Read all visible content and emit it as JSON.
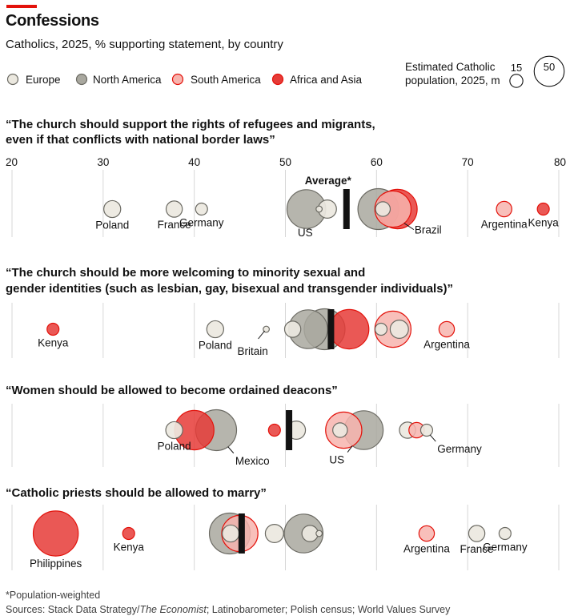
{
  "header": {
    "title": "Confessions",
    "subtitle": "Catholics, 2025, % supporting statement, by country"
  },
  "legend": {
    "regions": [
      {
        "label": "Europe",
        "fill": "#ebe8df",
        "stroke": "#6b6a63"
      },
      {
        "label": "North America",
        "fill": "#a9a89f",
        "stroke": "#6b6a63"
      },
      {
        "label": "South America",
        "fill": "#f7b4ae",
        "stroke": "#e3120b"
      },
      {
        "label": "Africa and Asia",
        "fill": "#e63b37",
        "stroke": "#e3120b"
      }
    ],
    "size_title_line1": "Estimated Catholic",
    "size_title_line2": "population, 2025, m",
    "size_values": [
      15,
      50
    ]
  },
  "footnotes": {
    "note": "*Population-weighted",
    "sources_prefix": "Sources: Stack Data Strategy/",
    "sources_italic": "The Economist",
    "sources_suffix": "; Latinobarometer; Polish census; World Values Survey"
  },
  "chart_data": {
    "type": "scatter",
    "x_axis": {
      "range": [
        20,
        80
      ],
      "ticks": [
        20,
        30,
        40,
        50,
        60,
        70,
        80
      ]
    },
    "average_label": "Average*",
    "panels": [
      {
        "title_lines": [
          "“The church should support the rights of refugees and migrants,",
          "even if that conflicts with national border laws”"
        ],
        "average": 56.7,
        "points": [
          {
            "region": "North America",
            "value": 52.3,
            "population": 63,
            "label": "US"
          },
          {
            "region": "Europe",
            "value": 54.6,
            "population": 14
          },
          {
            "region": "Europe",
            "value": 53.7,
            "population": 1
          },
          {
            "region": "North America",
            "value": 60.2,
            "population": 70
          },
          {
            "region": "Africa and Asia",
            "value": 62.3,
            "population": 65
          },
          {
            "region": "South America",
            "value": 61.8,
            "population": 55,
            "label": "Brazil"
          },
          {
            "region": "Europe",
            "value": 60.7,
            "population": 9
          },
          {
            "region": "Europe",
            "value": 31.0,
            "population": 12,
            "label": "Poland"
          },
          {
            "region": "Europe",
            "value": 37.8,
            "population": 11,
            "label": "France"
          },
          {
            "region": "Europe",
            "value": 40.8,
            "population": 6,
            "label": "Germany"
          },
          {
            "region": "South America",
            "value": 74.0,
            "population": 10,
            "label": "Argentina"
          },
          {
            "region": "Africa and Asia",
            "value": 78.3,
            "population": 6,
            "label": "Kenya"
          }
        ]
      },
      {
        "title_lines": [
          "“The church should be more welcoming to minority sexual and",
          "gender identities (such as lesbian, gay, bisexual and transgender individuals)”"
        ],
        "average": 55.0,
        "points": [
          {
            "region": "Africa and Asia",
            "value": 24.5,
            "population": 6,
            "label": "Kenya"
          },
          {
            "region": "Europe",
            "value": 42.3,
            "population": 12,
            "label": "Poland"
          },
          {
            "region": "Europe",
            "value": 47.9,
            "population": 1,
            "label": "Britain"
          },
          {
            "region": "North America",
            "value": 52.5,
            "population": 63
          },
          {
            "region": "North America",
            "value": 54.3,
            "population": 70
          },
          {
            "region": "Europe",
            "value": 50.8,
            "population": 11
          },
          {
            "region": "Africa and Asia",
            "value": 57.0,
            "population": 65
          },
          {
            "region": "Europe",
            "value": 60.5,
            "population": 6
          },
          {
            "region": "South America",
            "value": 61.8,
            "population": 55
          },
          {
            "region": "Europe",
            "value": 62.5,
            "population": 14
          },
          {
            "region": "South America",
            "value": 67.7,
            "population": 10,
            "label": "Argentina"
          }
        ]
      },
      {
        "title_lines": [
          "“Women should be allowed to become ordained deacons”"
        ],
        "average": 50.4,
        "points": [
          {
            "region": "Africa and Asia",
            "value": 40.0,
            "population": 65
          },
          {
            "region": "Europe",
            "value": 37.8,
            "population": 12,
            "label": "Poland"
          },
          {
            "region": "North America",
            "value": 42.4,
            "population": 70,
            "label": "Mexico"
          },
          {
            "region": "Africa and Asia",
            "value": 48.8,
            "population": 6
          },
          {
            "region": "Europe",
            "value": 51.2,
            "population": 14
          },
          {
            "region": "South America",
            "value": 56.4,
            "population": 55
          },
          {
            "region": "North America",
            "value": 58.6,
            "population": 63,
            "label": "US"
          },
          {
            "region": "Europe",
            "value": 56.0,
            "population": 9
          },
          {
            "region": "Europe",
            "value": 63.4,
            "population": 11
          },
          {
            "region": "South America",
            "value": 64.4,
            "population": 10
          },
          {
            "region": "Europe",
            "value": 65.5,
            "population": 6,
            "label": "Germany"
          }
        ]
      },
      {
        "title_lines": [
          "“Catholic priests should be allowed to marry”"
        ],
        "average": 45.2,
        "points": [
          {
            "region": "Africa and Asia",
            "value": 24.8,
            "population": 85,
            "label": "Philippines"
          },
          {
            "region": "Africa and Asia",
            "value": 32.8,
            "population": 6,
            "label": "Kenya"
          },
          {
            "region": "North America",
            "value": 43.9,
            "population": 70
          },
          {
            "region": "South America",
            "value": 45.0,
            "population": 55
          },
          {
            "region": "Europe",
            "value": 44.0,
            "population": 12
          },
          {
            "region": "Europe",
            "value": 48.8,
            "population": 14
          },
          {
            "region": "North America",
            "value": 52.0,
            "population": 63
          },
          {
            "region": "Europe",
            "value": 52.7,
            "population": 11
          },
          {
            "region": "Europe",
            "value": 53.7,
            "population": 1
          },
          {
            "region": "South America",
            "value": 65.5,
            "population": 10,
            "label": "Argentina"
          },
          {
            "region": "Europe",
            "value": 71.0,
            "population": 11,
            "label": "France"
          },
          {
            "region": "Europe",
            "value": 74.1,
            "population": 6,
            "label": "Germany"
          }
        ]
      }
    ]
  }
}
